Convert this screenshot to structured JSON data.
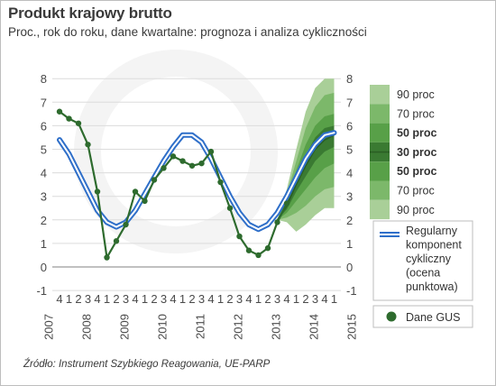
{
  "title": "Produkt krajowy brutto",
  "subtitle": "Proc., rok do roku, dane kwartalne: prognoza i analiza cykliczności",
  "source": "Źródło: Instrument Szybkiego Reagowania, UE-PARP",
  "colors": {
    "gus": "#2e6b2e",
    "cycle": "#2f6fc9",
    "fan": [
      "#a9cf98",
      "#7cb86a",
      "#58a048",
      "#3a7a32"
    ],
    "median": "#2a5e24"
  },
  "chart_data": {
    "type": "line",
    "ylim": [
      -1,
      8
    ],
    "yticks": [
      -1,
      0,
      1,
      2,
      3,
      4,
      5,
      6,
      7,
      8
    ],
    "grid": true,
    "quarters": [
      "4",
      "1",
      "2",
      "3",
      "4",
      "1",
      "2",
      "3",
      "4",
      "1",
      "2",
      "3",
      "4",
      "1",
      "2",
      "3",
      "4",
      "1",
      "2",
      "3",
      "4",
      "1",
      "2",
      "3",
      "4",
      "1",
      "2",
      "3",
      "4",
      "1"
    ],
    "years": [
      "2007",
      "2008",
      "2009",
      "2010",
      "2011",
      "2012",
      "2013",
      "2014",
      "2015"
    ],
    "series": [
      {
        "name": "Dane GUS",
        "x": [
          0,
          1,
          2,
          3,
          4,
          5,
          6,
          7,
          8,
          9,
          10,
          11,
          12,
          13,
          14,
          15,
          16,
          17,
          18,
          19,
          20,
          21,
          22,
          23,
          24
        ],
        "values": [
          6.6,
          6.3,
          6.1,
          5.2,
          3.2,
          0.4,
          1.1,
          1.8,
          3.2,
          2.8,
          3.7,
          4.2,
          4.7,
          4.5,
          4.3,
          4.4,
          4.9,
          3.6,
          2.5,
          1.3,
          0.7,
          0.5,
          0.8,
          1.9,
          2.7
        ]
      },
      {
        "name": "Regularny komponent cykliczny (ocena punktowa)",
        "x": [
          0,
          1,
          2,
          3,
          4,
          5,
          6,
          7,
          8,
          9,
          10,
          11,
          12,
          13,
          14,
          15,
          16,
          17,
          18,
          19,
          20,
          21,
          22,
          23,
          24,
          25,
          26,
          27,
          28,
          29
        ],
        "values": [
          5.4,
          4.8,
          4.0,
          3.2,
          2.4,
          1.9,
          1.7,
          1.9,
          2.4,
          3.1,
          3.8,
          4.5,
          5.1,
          5.6,
          5.6,
          5.3,
          4.6,
          3.8,
          3.0,
          2.3,
          1.8,
          1.6,
          1.8,
          2.3,
          3.0,
          3.8,
          4.6,
          5.2,
          5.6,
          5.7
        ]
      },
      {
        "name": "30 proc",
        "x": [
          23,
          24,
          25,
          26,
          27,
          28,
          29
        ],
        "values": [
          2.0,
          2.6,
          3.5,
          4.3,
          5.0,
          5.4,
          5.6
        ]
      }
    ],
    "fan": {
      "x": [
        23,
        24,
        25,
        26,
        27,
        28,
        29
      ],
      "bands": [
        {
          "name": "90 proc",
          "upper": [
            2.0,
            3.3,
            5.0,
            6.6,
            7.6,
            8.0,
            8.0
          ],
          "lower": [
            2.0,
            1.9,
            1.5,
            1.8,
            2.2,
            2.5,
            2.5
          ]
        },
        {
          "name": "70 proc",
          "upper": [
            2.0,
            3.1,
            4.5,
            5.9,
            6.8,
            7.3,
            7.4
          ],
          "lower": [
            2.0,
            2.1,
            2.3,
            2.6,
            3.0,
            3.3,
            3.4
          ]
        },
        {
          "name": "50 proc",
          "upper": [
            2.0,
            2.9,
            4.1,
            5.2,
            6.0,
            6.4,
            6.5
          ],
          "lower": [
            2.0,
            2.3,
            2.8,
            3.3,
            3.8,
            4.2,
            4.4
          ]
        },
        {
          "name": "30 proc",
          "upper": [
            2.0,
            2.75,
            3.8,
            4.75,
            5.5,
            5.9,
            6.0
          ],
          "lower": [
            2.0,
            2.45,
            3.2,
            3.85,
            4.5,
            4.9,
            5.1
          ]
        }
      ]
    },
    "legend": {
      "fan_labels": [
        "90 proc",
        "70 proc",
        "50 proc",
        "30 proc",
        "50 proc",
        "70 proc",
        "90 proc"
      ],
      "fan_bold": [
        false,
        false,
        true,
        true,
        true,
        false,
        false
      ],
      "cycle_label_lines": [
        "Regularny",
        "komponent",
        "cykliczny",
        "(ocena",
        "punktowa)"
      ],
      "gus_label": "Dane GUS",
      "placement": "right"
    }
  }
}
